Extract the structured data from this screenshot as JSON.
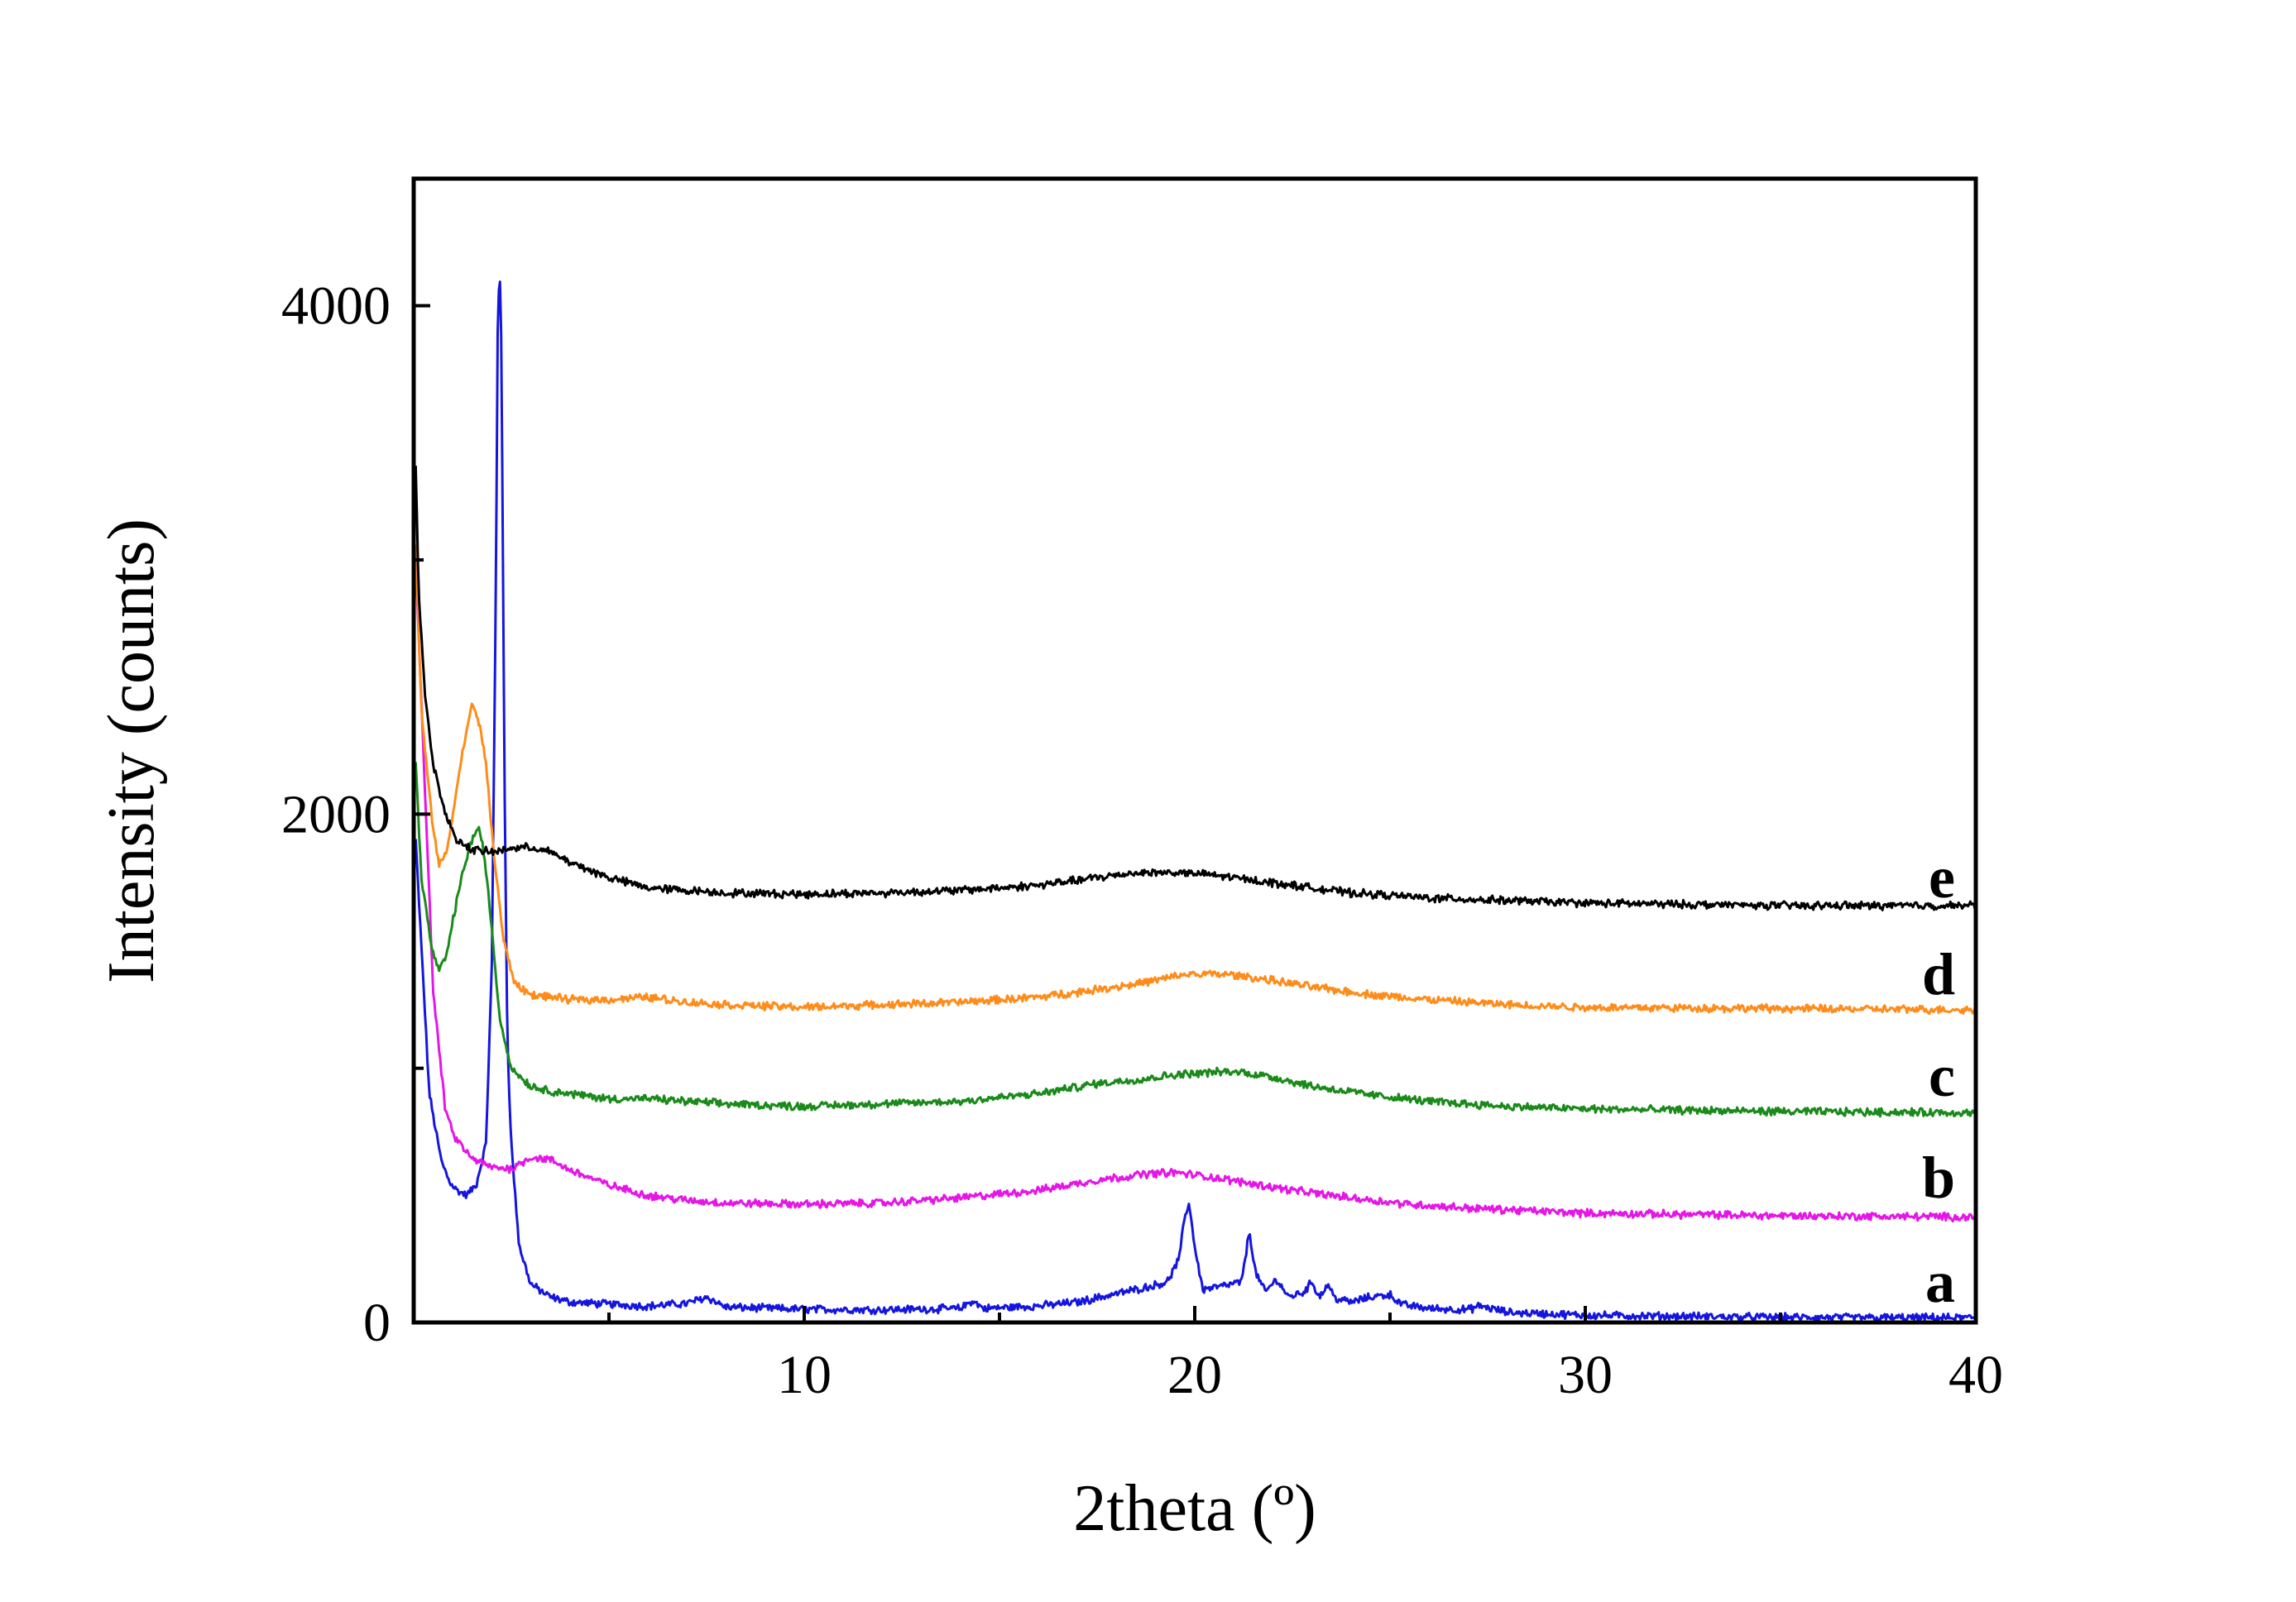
{
  "chart_data": {
    "type": "line",
    "title": "",
    "xlabel": "2theta (º)",
    "ylabel": "Intensity (counts)",
    "xlim": [
      0,
      40
    ],
    "ylim": [
      0,
      4500
    ],
    "x_ticks": [
      10,
      20,
      30,
      40
    ],
    "x_minor_ticks": [
      5,
      15,
      25,
      35
    ],
    "y_ticks": [
      0,
      2000,
      4000
    ],
    "grid": false,
    "legend": "none",
    "series": [
      {
        "name": "a",
        "color": "#1515e0",
        "label_anchor": [
          2.3,
          2000
        ],
        "points": [
          [
            0.05,
            1900
          ],
          [
            0.4,
            900
          ],
          [
            0.7,
            640
          ],
          [
            0.9,
            560
          ],
          [
            1.1,
            520
          ],
          [
            1.35,
            500
          ],
          [
            1.6,
            540
          ],
          [
            1.85,
            700
          ],
          [
            2.0,
            1400
          ],
          [
            2.1,
            2800
          ],
          [
            2.15,
            3900
          ],
          [
            2.2,
            4180
          ],
          [
            2.25,
            3800
          ],
          [
            2.32,
            2200
          ],
          [
            2.4,
            1100
          ],
          [
            2.5,
            700
          ],
          [
            2.7,
            300
          ],
          [
            3.0,
            150
          ],
          [
            3.5,
            100
          ],
          [
            4.0,
            80
          ],
          [
            5.0,
            72
          ],
          [
            6.0,
            64
          ],
          [
            7.0,
            75
          ],
          [
            7.5,
            100
          ],
          [
            8.0,
            60
          ],
          [
            10.0,
            52
          ],
          [
            12.0,
            50
          ],
          [
            14.0,
            55
          ],
          [
            14.3,
            85
          ],
          [
            14.6,
            55
          ],
          [
            16.0,
            65
          ],
          [
            17.0,
            80
          ],
          [
            17.6,
            100
          ],
          [
            18.2,
            120
          ],
          [
            18.8,
            140
          ],
          [
            19.3,
            160
          ],
          [
            19.6,
            250
          ],
          [
            19.75,
            420
          ],
          [
            19.85,
            470
          ],
          [
            20.0,
            300
          ],
          [
            20.2,
            130
          ],
          [
            20.8,
            145
          ],
          [
            21.2,
            160
          ],
          [
            21.4,
            360
          ],
          [
            21.55,
            200
          ],
          [
            21.8,
            120
          ],
          [
            22.1,
            170
          ],
          [
            22.4,
            100
          ],
          [
            22.8,
            120
          ],
          [
            23.0,
            160
          ],
          [
            23.2,
            100
          ],
          [
            23.4,
            150
          ],
          [
            23.6,
            95
          ],
          [
            24.0,
            80
          ],
          [
            24.5,
            100
          ],
          [
            25.0,
            110
          ],
          [
            25.3,
            70
          ],
          [
            26.0,
            55
          ],
          [
            27.0,
            50
          ],
          [
            27.3,
            65
          ],
          [
            28.0,
            40
          ],
          [
            30.0,
            28
          ],
          [
            35.0,
            20
          ],
          [
            40.0,
            18
          ]
        ]
      },
      {
        "name": "b",
        "color": "#e616e6",
        "label_anchor": [
          2.3,
          1930
        ],
        "points": [
          [
            0.05,
            3000
          ],
          [
            0.5,
            1300
          ],
          [
            0.8,
            850
          ],
          [
            1.0,
            740
          ],
          [
            1.2,
            700
          ],
          [
            1.45,
            650
          ],
          [
            1.7,
            630
          ],
          [
            2.0,
            610
          ],
          [
            2.5,
            605
          ],
          [
            3.0,
            650
          ],
          [
            3.5,
            640
          ],
          [
            4.0,
            600
          ],
          [
            5.0,
            540
          ],
          [
            6.0,
            500
          ],
          [
            7.0,
            480
          ],
          [
            8.0,
            470
          ],
          [
            10.0,
            465
          ],
          [
            12.0,
            470
          ],
          [
            14.0,
            490
          ],
          [
            16.0,
            520
          ],
          [
            17.5,
            560
          ],
          [
            18.8,
            585
          ],
          [
            19.5,
            590
          ],
          [
            20.5,
            570
          ],
          [
            21.5,
            545
          ],
          [
            22.5,
            520
          ],
          [
            24.0,
            490
          ],
          [
            25.5,
            465
          ],
          [
            27.0,
            450
          ],
          [
            30.0,
            430
          ],
          [
            35.0,
            420
          ],
          [
            40.0,
            415
          ]
        ]
      },
      {
        "name": "c",
        "color": "#1a8a1a",
        "label_anchor": [
          2.3,
          1860
        ],
        "points": [
          [
            0.05,
            2200
          ],
          [
            0.2,
            1750
          ],
          [
            0.45,
            1480
          ],
          [
            0.65,
            1380
          ],
          [
            0.85,
            1450
          ],
          [
            1.05,
            1620
          ],
          [
            1.3,
            1800
          ],
          [
            1.5,
            1900
          ],
          [
            1.65,
            1950
          ],
          [
            1.8,
            1850
          ],
          [
            2.0,
            1550
          ],
          [
            2.2,
            1200
          ],
          [
            2.5,
            1000
          ],
          [
            3.0,
            930
          ],
          [
            3.5,
            910
          ],
          [
            4.0,
            900
          ],
          [
            5.0,
            880
          ],
          [
            6.0,
            880
          ],
          [
            7.0,
            870
          ],
          [
            8.0,
            860
          ],
          [
            10.0,
            850
          ],
          [
            12.0,
            860
          ],
          [
            14.0,
            870
          ],
          [
            16.0,
            900
          ],
          [
            17.5,
            940
          ],
          [
            18.8,
            960
          ],
          [
            19.5,
            975
          ],
          [
            20.5,
            985
          ],
          [
            21.2,
            985
          ],
          [
            22.0,
            965
          ],
          [
            23.0,
            930
          ],
          [
            24.5,
            895
          ],
          [
            26.0,
            870
          ],
          [
            28.0,
            850
          ],
          [
            30.0,
            840
          ],
          [
            35.0,
            830
          ],
          [
            40.0,
            825
          ]
        ]
      },
      {
        "name": "d",
        "color": "#ff8c1a",
        "label_anchor": [
          2.3,
          1790
        ],
        "points": [
          [
            0.05,
            3050
          ],
          [
            0.2,
            2400
          ],
          [
            0.45,
            2000
          ],
          [
            0.65,
            1800
          ],
          [
            0.85,
            1850
          ],
          [
            1.1,
            2100
          ],
          [
            1.35,
            2330
          ],
          [
            1.5,
            2430
          ],
          [
            1.65,
            2380
          ],
          [
            1.85,
            2200
          ],
          [
            2.05,
            1850
          ],
          [
            2.3,
            1500
          ],
          [
            2.6,
            1330
          ],
          [
            3.0,
            1290
          ],
          [
            4.0,
            1270
          ],
          [
            5.0,
            1270
          ],
          [
            6.0,
            1280
          ],
          [
            7.0,
            1260
          ],
          [
            8.0,
            1250
          ],
          [
            10.0,
            1240
          ],
          [
            12.0,
            1250
          ],
          [
            14.0,
            1260
          ],
          [
            16.0,
            1280
          ],
          [
            17.5,
            1310
          ],
          [
            18.8,
            1340
          ],
          [
            19.8,
            1370
          ],
          [
            20.8,
            1370
          ],
          [
            21.8,
            1350
          ],
          [
            23.0,
            1320
          ],
          [
            24.5,
            1290
          ],
          [
            26.0,
            1270
          ],
          [
            28.0,
            1250
          ],
          [
            30.0,
            1240
          ],
          [
            35.0,
            1235
          ],
          [
            40.0,
            1230
          ]
        ]
      },
      {
        "name": "e",
        "color": "#000000",
        "label_anchor": [
          2.3,
          1720
        ],
        "points": [
          [
            0.05,
            3380
          ],
          [
            0.12,
            2900
          ],
          [
            0.3,
            2450
          ],
          [
            0.5,
            2200
          ],
          [
            0.8,
            2000
          ],
          [
            1.1,
            1900
          ],
          [
            1.5,
            1860
          ],
          [
            2.0,
            1850
          ],
          [
            2.5,
            1865
          ],
          [
            3.0,
            1870
          ],
          [
            3.5,
            1850
          ],
          [
            4.0,
            1810
          ],
          [
            5.0,
            1750
          ],
          [
            6.0,
            1710
          ],
          [
            7.0,
            1700
          ],
          [
            8.0,
            1690
          ],
          [
            10.0,
            1685
          ],
          [
            12.0,
            1690
          ],
          [
            14.0,
            1700
          ],
          [
            16.0,
            1720
          ],
          [
            17.5,
            1750
          ],
          [
            18.5,
            1770
          ],
          [
            19.5,
            1770
          ],
          [
            20.5,
            1760
          ],
          [
            21.5,
            1740
          ],
          [
            22.5,
            1720
          ],
          [
            24.0,
            1690
          ],
          [
            26.0,
            1670
          ],
          [
            28.0,
            1660
          ],
          [
            30.0,
            1650
          ],
          [
            35.0,
            1640
          ],
          [
            40.0,
            1640
          ]
        ]
      }
    ],
    "series_labels": [
      {
        "text": "e",
        "y": 1750
      },
      {
        "text": "d",
        "y": 1370
      },
      {
        "text": "c",
        "y": 970
      },
      {
        "text": "b",
        "y": 570
      },
      {
        "text": "a",
        "y": 160
      }
    ]
  }
}
